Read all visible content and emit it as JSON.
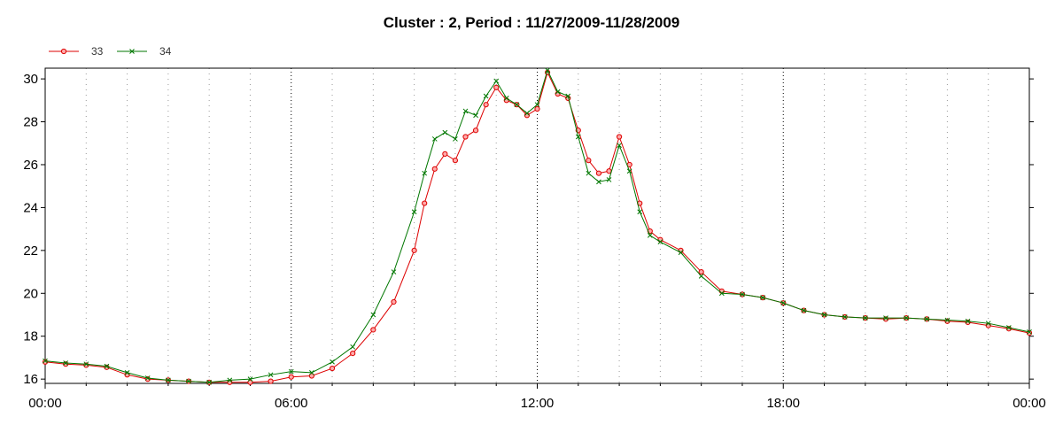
{
  "chart_data": {
    "type": "line",
    "title": "Cluster : 2, Period : 11/27/2009-11/28/2009",
    "xlabel": "",
    "ylabel": "",
    "x_unit": "hours",
    "x": [
      0,
      0.5,
      1,
      1.5,
      2,
      2.5,
      3,
      3.5,
      4,
      4.5,
      5,
      5.5,
      6,
      6.5,
      7,
      7.5,
      8,
      8.5,
      9,
      9.25,
      9.5,
      9.75,
      10,
      10.25,
      10.5,
      10.75,
      11,
      11.25,
      11.5,
      11.75,
      12,
      12.25,
      12.5,
      12.75,
      13,
      13.25,
      13.5,
      13.75,
      14,
      14.25,
      14.5,
      14.75,
      15,
      15.5,
      16,
      16.5,
      17,
      17.5,
      18,
      18.5,
      19,
      19.5,
      20,
      20.5,
      21,
      21.5,
      22,
      22.5,
      23,
      23.5,
      24
    ],
    "series": [
      {
        "name": "33",
        "color": "#dd0000",
        "marker_fill": "#ffaaaa",
        "marker": "circle",
        "values": [
          16.8,
          16.7,
          16.65,
          16.55,
          16.2,
          16.0,
          15.95,
          15.9,
          15.85,
          15.85,
          15.85,
          15.9,
          16.1,
          16.15,
          16.5,
          17.2,
          18.3,
          19.6,
          22.0,
          24.2,
          25.8,
          26.5,
          26.2,
          27.3,
          27.6,
          28.8,
          29.6,
          29.0,
          28.8,
          28.3,
          28.6,
          30.3,
          29.3,
          29.1,
          27.6,
          26.2,
          25.6,
          25.7,
          27.3,
          26.0,
          24.2,
          22.9,
          22.5,
          22.0,
          21.0,
          20.1,
          19.95,
          19.8,
          19.55,
          19.2,
          19.0,
          18.9,
          18.85,
          18.8,
          18.85,
          18.8,
          18.7,
          18.65,
          18.5,
          18.35,
          18.15
        ]
      },
      {
        "name": "34",
        "color": "#007700",
        "marker": "x",
        "values": [
          16.85,
          16.75,
          16.7,
          16.6,
          16.3,
          16.05,
          15.95,
          15.9,
          15.85,
          15.95,
          16.0,
          16.2,
          16.35,
          16.3,
          16.8,
          17.5,
          19.0,
          21.0,
          23.8,
          25.6,
          27.2,
          27.5,
          27.2,
          28.5,
          28.3,
          29.2,
          29.9,
          29.1,
          28.8,
          28.4,
          28.8,
          30.4,
          29.4,
          29.2,
          27.3,
          25.6,
          25.2,
          25.3,
          26.9,
          25.7,
          23.8,
          22.7,
          22.4,
          21.9,
          20.8,
          20.0,
          19.95,
          19.8,
          19.55,
          19.2,
          19.0,
          18.9,
          18.85,
          18.85,
          18.85,
          18.8,
          18.75,
          18.7,
          18.6,
          18.4,
          18.2
        ]
      }
    ],
    "xlim": [
      0,
      24
    ],
    "ylim": [
      15.8,
      30.5
    ],
    "x_ticks": [
      0,
      6,
      12,
      18,
      24
    ],
    "x_tick_labels": [
      "00:00",
      "06:00",
      "12:00",
      "18:00",
      "00:00"
    ],
    "y_ticks": [
      16,
      18,
      20,
      22,
      24,
      26,
      28,
      30
    ],
    "y_tick_labels": [
      "16",
      "18",
      "20",
      "22",
      "24",
      "26",
      "28",
      "30"
    ],
    "grid": true,
    "legend_position": "top-left"
  }
}
